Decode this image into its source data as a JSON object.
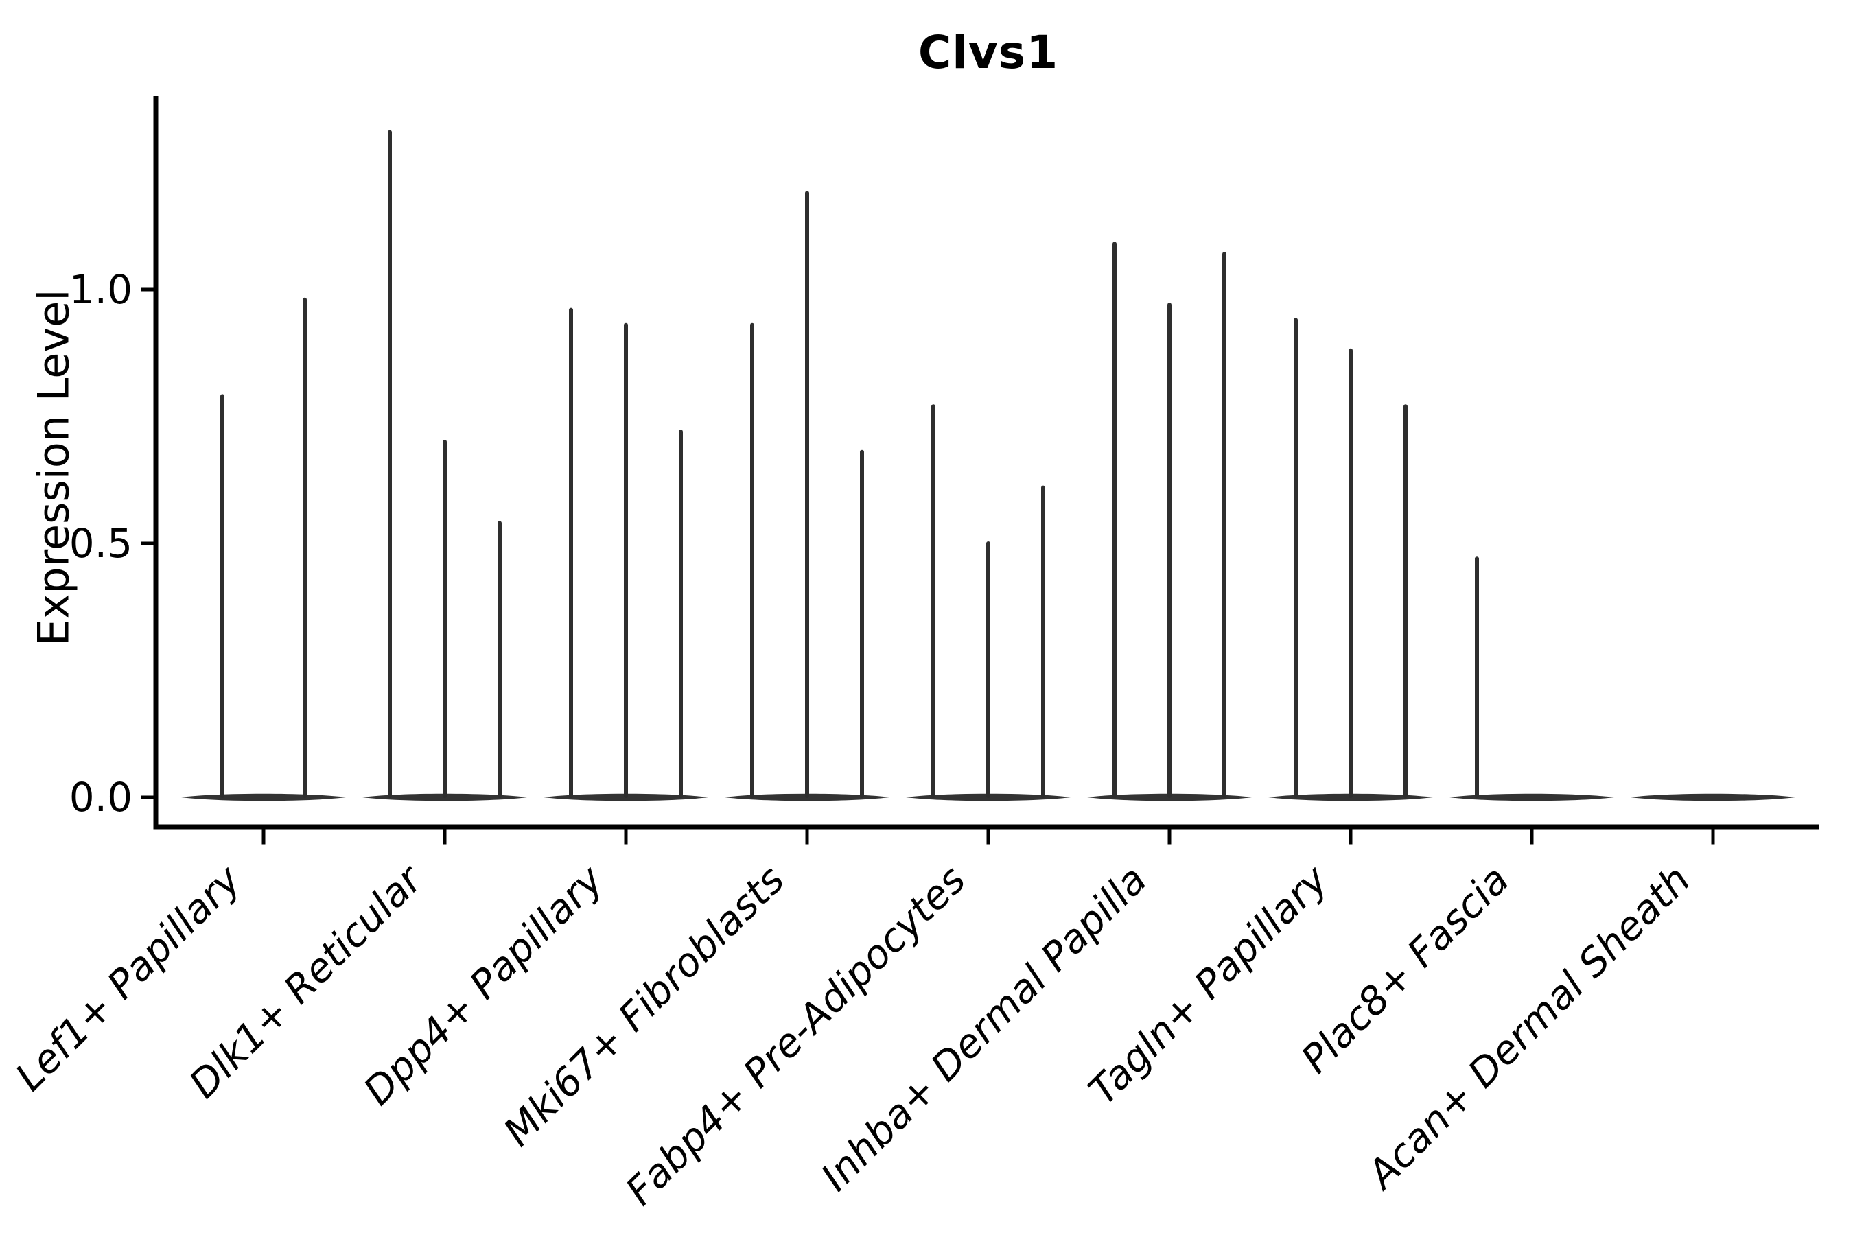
{
  "chart_data": {
    "type": "violin",
    "title": "Clvs1",
    "ylabel": "Expression Level",
    "xlabel": "",
    "yticks": [
      0.0,
      0.5,
      1.0
    ],
    "ytick_labels": [
      "0.0",
      "0.5",
      "1.0"
    ],
    "ylim": [
      -0.06,
      1.38
    ],
    "grid": false,
    "legend": null,
    "categories": [
      "Lef1+ Papillary",
      "Dlk1+ Reticular",
      "Dpp4+ Papillary",
      "Mki67+ Fibroblasts",
      "Fabp4+ Pre-Adipocytes",
      "Inhba+ Dermal Papilla",
      "Tagln+ Papillary",
      "Plac8+ Fascia",
      "Acan+ Dermal Sheath"
    ],
    "violins": [
      {
        "label": "Lef1+ Papillary",
        "peaks": [
          0.79,
          0.98
        ]
      },
      {
        "label": "Dlk1+ Reticular",
        "peaks": [
          1.31,
          0.7,
          0.54
        ]
      },
      {
        "label": "Dpp4+ Papillary",
        "peaks": [
          0.96,
          0.93,
          0.72
        ]
      },
      {
        "label": "Mki67+ Fibroblasts",
        "peaks": [
          0.93,
          1.19,
          0.68
        ]
      },
      {
        "label": "Fabp4+ Pre-Adipocytes",
        "peaks": [
          0.77,
          0.5,
          0.61
        ]
      },
      {
        "label": "Inhba+ Dermal Papilla",
        "peaks": [
          1.09,
          0.97,
          1.07
        ]
      },
      {
        "label": "Tagln+ Papillary",
        "peaks": [
          0.94,
          0.88,
          0.77
        ]
      },
      {
        "label": "Plac8+ Fascia",
        "peaks": [
          0.47,
          0.0,
          0.0
        ]
      },
      {
        "label": "Acan+ Dermal Sheath",
        "peaks": [
          0.0,
          0.0,
          0.0
        ]
      }
    ],
    "colors": {
      "spike": "#2e2e2e",
      "baseline_violin": "#333333",
      "axis": "#000000",
      "text": "#000000",
      "background": "#ffffff"
    }
  }
}
